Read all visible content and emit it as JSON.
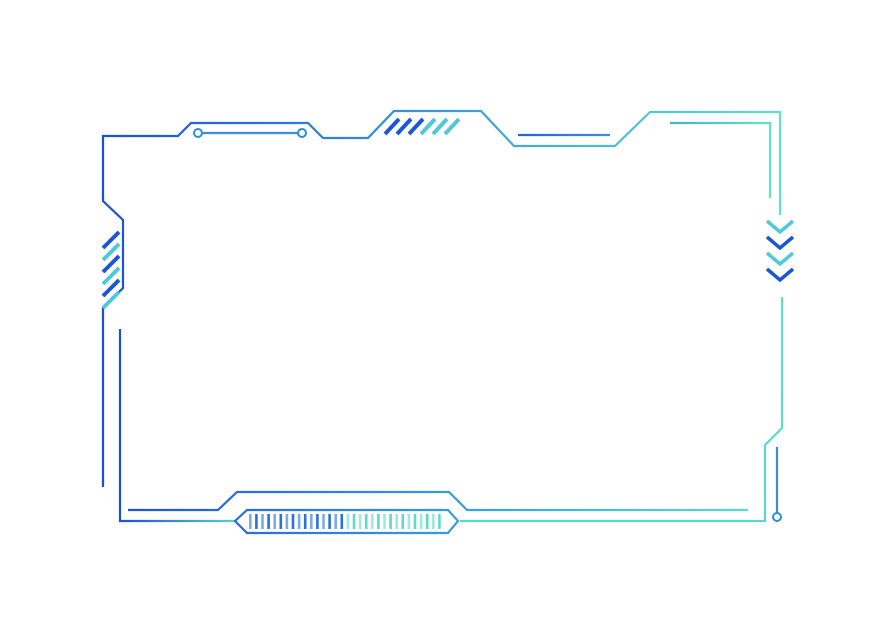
{
  "frame": {
    "style": "tech-hud-border",
    "colors": {
      "gradient_start": "#1a4fd6",
      "gradient_mid": "#3a9bd8",
      "gradient_end": "#62e4c6",
      "background": "#ffffff"
    },
    "decorations": {
      "chevron_count": 4,
      "bottom_bar_count": 32
    }
  }
}
